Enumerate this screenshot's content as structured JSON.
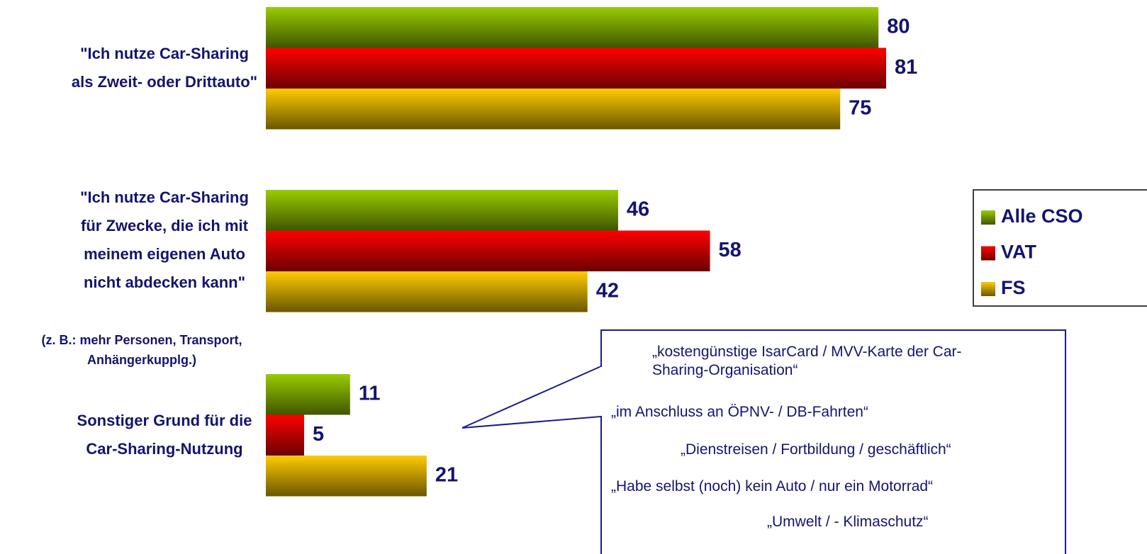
{
  "chart_data": {
    "type": "bar",
    "orientation": "horizontal",
    "categories": [
      "\"Ich nutze Car-Sharing als Zweit- oder Drittauto\"",
      "\"Ich nutze Car-Sharing für Zwecke, die ich mit meinem eigenen Auto nicht abdecken kann\"",
      "Sonstiger Grund für die Car-Sharing-Nutzung"
    ],
    "annotations": [
      "(z. B.: mehr Personen, Transport, Anhängerkupplg.)"
    ],
    "series": [
      {
        "name": "Alle CSO",
        "color": "#99cc00",
        "values": [
          80,
          46,
          11
        ]
      },
      {
        "name": "VAT",
        "color": "#ff0000",
        "values": [
          81,
          58,
          5
        ]
      },
      {
        "name": "FS",
        "color": "#ffcc00",
        "values": [
          75,
          42,
          21
        ]
      }
    ],
    "legend": "right",
    "callout_quotes": [
      "„kostengünstige IsarCard / MVV-Karte der Car-Sharing-Organisation“",
      "„im Anschluss an ÖPNV- / DB-Fahrten“",
      "„Dienstreisen / Fortbildung / geschäftlich“",
      "„Habe selbst (noch) kein Auto / nur ein Motorrad“",
      "„Umwelt / - Klimaschutz“"
    ]
  }
}
